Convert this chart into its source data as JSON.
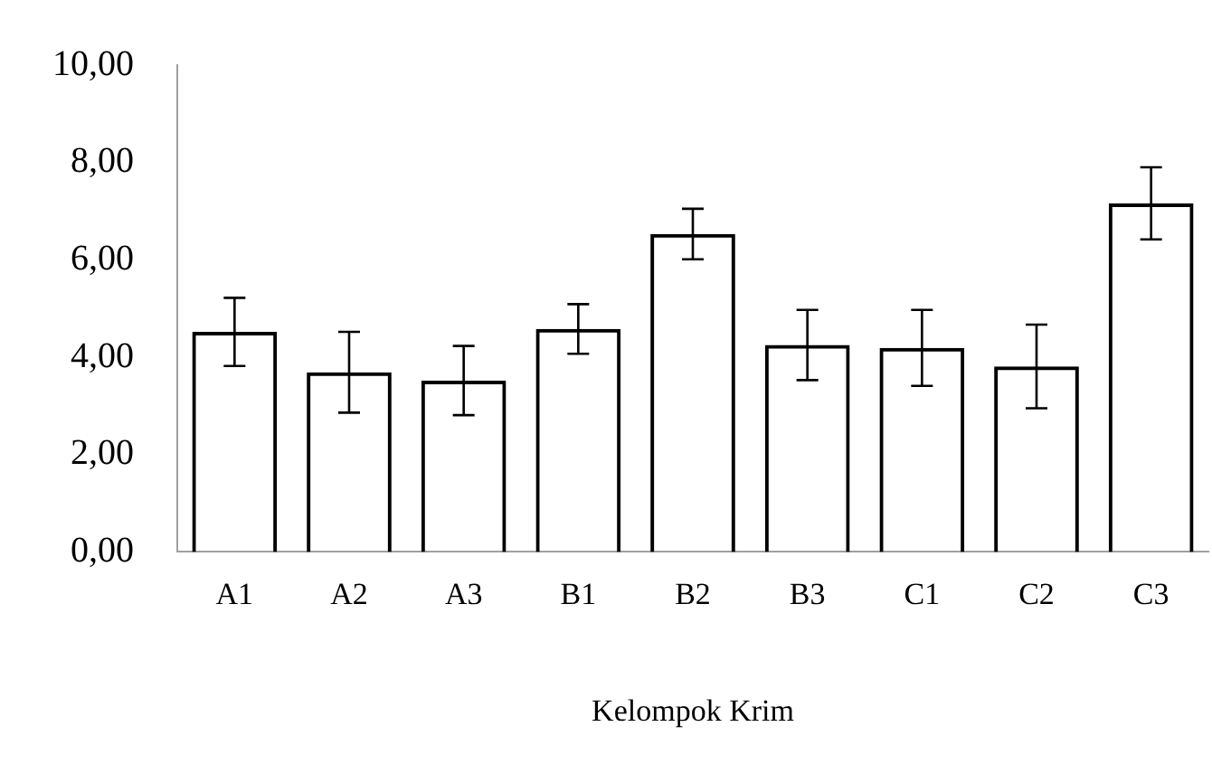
{
  "chart_data": {
    "type": "bar",
    "xlabel": "Kelompok Krim",
    "categories": [
      "A1",
      "A2",
      "A3",
      "B1",
      "B2",
      "B3",
      "C1",
      "C2",
      "C3"
    ],
    "values": [
      4.52,
      3.69,
      3.52,
      4.58,
      6.53,
      4.25,
      4.19,
      3.81,
      7.16
    ],
    "errors": [
      0.7,
      0.83,
      0.71,
      0.51,
      0.52,
      0.72,
      0.78,
      0.86,
      0.74
    ],
    "color": "#000000",
    "ylim": [
      0,
      10
    ],
    "yticks": [
      {
        "value": 0,
        "label": "0,00"
      },
      {
        "value": 2,
        "label": "2,00"
      },
      {
        "value": 4,
        "label": "4,00"
      },
      {
        "value": 6,
        "label": "6,00"
      },
      {
        "value": 8,
        "label": "8,00"
      },
      {
        "value": 10,
        "label": "10,00"
      }
    ],
    "grid": false,
    "legend": false
  }
}
